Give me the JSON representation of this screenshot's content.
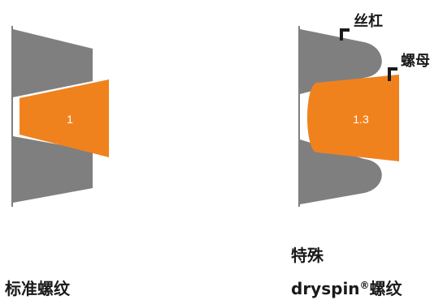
{
  "colors": {
    "thread": "#7f7f80",
    "nut": "#f0821e",
    "edge": "#7f7f80",
    "bracket": "#1a1a1a",
    "text": "#1a1a1a",
    "ratio_text": "#ffffff"
  },
  "left_panel": {
    "ratio": "1",
    "caption": "标准螺纹"
  },
  "right_panel": {
    "ratio": "1.3",
    "label_screw": "丝杠",
    "label_nut": "螺母",
    "caption_line1": "特殊",
    "caption_line2_prefix": "dryspin",
    "caption_line2_mark": "®",
    "caption_line2_suffix": "螺纹"
  }
}
